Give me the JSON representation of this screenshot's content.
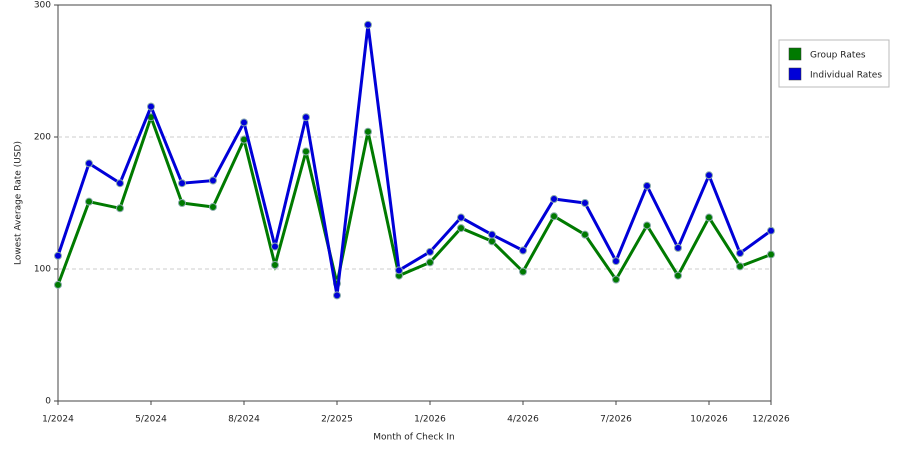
{
  "chart_data": {
    "type": "line",
    "x_label": "Month of Check In",
    "y_label": "Lowest Average Rate (USD)",
    "categories": [
      "1/2024",
      null,
      null,
      "5/2024",
      null,
      null,
      "8/2024",
      null,
      null,
      "2/2025",
      null,
      null,
      "1/2026",
      null,
      null,
      "4/2026",
      null,
      null,
      "7/2026",
      null,
      null,
      "10/2026",
      null,
      "12/2026"
    ],
    "series": [
      {
        "name": "Group Rates",
        "color": "#007a00",
        "values": [
          88,
          151,
          146,
          215,
          150,
          147,
          198,
          103,
          189,
          89,
          204,
          95,
          105,
          131,
          121,
          98,
          140,
          126,
          92,
          133,
          95,
          139,
          102,
          111
        ]
      },
      {
        "name": "Individual Rates",
        "color": "#0000d8",
        "values": [
          110,
          180,
          165,
          223,
          165,
          167,
          211,
          117,
          215,
          80,
          285,
          99,
          113,
          139,
          126,
          114,
          153,
          150,
          106,
          163,
          116,
          171,
          112,
          129
        ]
      }
    ],
    "ylim": [
      0,
      300
    ],
    "yticks": [
      0,
      100,
      200,
      300
    ],
    "grid": true,
    "legend": "right"
  }
}
